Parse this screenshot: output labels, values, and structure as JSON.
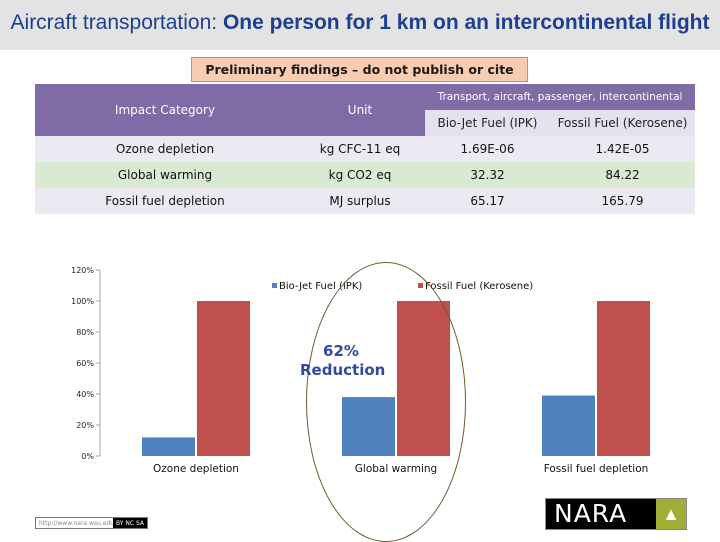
{
  "header": {
    "title_part1": "Aircraft transportation: ",
    "title_part2": "One person for 1 km on an intercontinental flight"
  },
  "banner": {
    "text": "Preliminary findings – do not publish or cite"
  },
  "table": {
    "col_impact": "Impact Category",
    "col_unit": "Unit",
    "col_group": "Transport, aircraft, passenger, intercontinental",
    "col_bio": "Bio-Jet Fuel (IPK)",
    "col_fossil": "Fossil Fuel (Kerosene)",
    "rows": [
      {
        "category": "Ozone depletion",
        "unit": "kg CFC-11 eq",
        "bio": "1.69E-06",
        "fossil": "1.42E-05"
      },
      {
        "category": "Global warming",
        "unit": "kg CO2 eq",
        "bio": "32.32",
        "fossil": "84.22"
      },
      {
        "category": "Fossil fuel depletion",
        "unit": "MJ surplus",
        "bio": "65.17",
        "fossil": "165.79"
      }
    ]
  },
  "annotation": {
    "line1": "62%",
    "line2": "Reduction"
  },
  "footer": {
    "license_text": "http://www.nara.wsu.edu",
    "cc_text": "BY NC SA",
    "logo_text": "NARA",
    "tree_icon": "▲"
  },
  "colors": {
    "bio": "#4f81bd",
    "fossil": "#c0504d",
    "grid": "#a6a6a6"
  },
  "chart_data": {
    "type": "bar",
    "categories": [
      "Ozone depletion",
      "Global warming",
      "Fossil fuel depletion"
    ],
    "series": [
      {
        "name": "Bio-Jet Fuel (IPK)",
        "values": [
          12,
          38,
          39
        ]
      },
      {
        "name": "Fossil Fuel (Kerosene)",
        "values": [
          100,
          100,
          100
        ]
      }
    ],
    "ylim": [
      0,
      120
    ],
    "yticks": [
      "0%",
      "20%",
      "40%",
      "60%",
      "80%",
      "100%",
      "120%"
    ],
    "ytick_values": [
      0,
      20,
      40,
      60,
      80,
      100,
      120
    ],
    "title": "",
    "xlabel": "",
    "ylabel": "",
    "legend": "top-center",
    "grid": false
  }
}
